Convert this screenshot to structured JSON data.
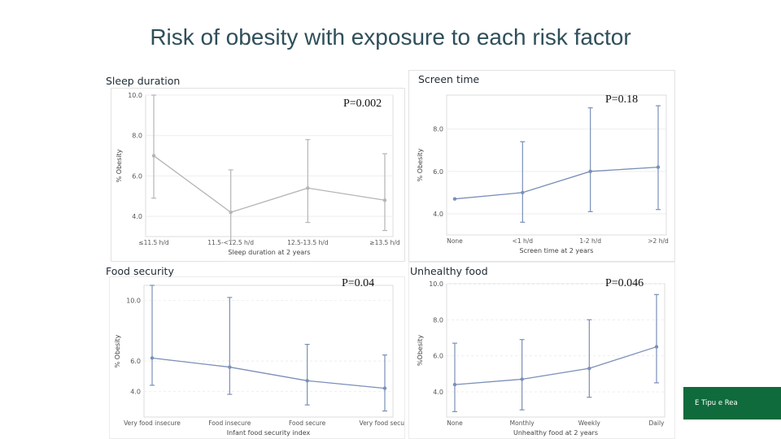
{
  "slide_title": "Risk of obesity with exposure to each risk factor",
  "brand": "E Tipu e Rea",
  "panels": [
    {
      "label": "Sleep duration",
      "pvalue": "P=0.002"
    },
    {
      "label": "Screen time",
      "pvalue": "P=0.18"
    },
    {
      "label": "Food security",
      "pvalue": "P=0.04"
    },
    {
      "label": "Unhealthy food",
      "pvalue": "P=0.046"
    }
  ],
  "chart_data": [
    {
      "type": "line",
      "ylabel": "% Obesity",
      "xlabel": "Sleep duration at 2 years",
      "categories": [
        "≤11.5 h/d",
        "11.5-<12.5 h/d",
        "12.5-13.5 h/d",
        "≥13.5 h/d"
      ],
      "values": [
        7.0,
        4.2,
        5.4,
        4.8
      ],
      "ci_low": [
        4.9,
        2.8,
        3.7,
        3.3
      ],
      "ci_high": [
        10.0,
        6.3,
        7.8,
        7.1
      ],
      "yticks": [
        "4.0",
        "6.0",
        "8.0",
        "10.0"
      ],
      "ylim": [
        3.0,
        10.0
      ],
      "color": "#b5b5b5"
    },
    {
      "type": "line",
      "ylabel": "% Obesity",
      "xlabel": "Screen time at 2 years",
      "categories": [
        "None",
        "<1 h/d",
        "1-2 h/d",
        ">2 h/d"
      ],
      "values": [
        4.7,
        5.0,
        6.0,
        6.2
      ],
      "ci_low": [
        4.7,
        3.6,
        4.1,
        4.2
      ],
      "ci_high": [
        4.7,
        7.4,
        9.0,
        9.1
      ],
      "yticks": [
        "4.0",
        "6.0",
        "8.0"
      ],
      "ylim": [
        3.0,
        9.6
      ],
      "color": "#7a8fb8"
    },
    {
      "type": "line",
      "ylabel": "% Obesity",
      "xlabel": "Infant food security index",
      "categories": [
        "Very food insecure",
        "Food insecure",
        "Food secure",
        "Very food secure"
      ],
      "values": [
        6.2,
        5.6,
        4.7,
        4.2
      ],
      "ci_low": [
        4.4,
        3.8,
        3.1,
        2.7
      ],
      "ci_high": [
        11.0,
        10.2,
        7.1,
        6.4
      ],
      "yticks": [
        "4.0",
        "6.0",
        "10.0"
      ],
      "ylim": [
        2.3,
        11.0
      ],
      "color": "#7a8fb8"
    },
    {
      "type": "line",
      "ylabel": "%Obesity",
      "xlabel": "Unhealthy food at 2 years",
      "categories": [
        "None",
        "Monthly",
        "Weekly",
        "Daily"
      ],
      "values": [
        4.4,
        4.7,
        5.3,
        6.5
      ],
      "ci_low": [
        2.9,
        3.0,
        3.7,
        4.5
      ],
      "ci_high": [
        6.7,
        6.9,
        8.0,
        9.4
      ],
      "yticks": [
        "4.0",
        "6.0",
        "8.0",
        "10.0"
      ],
      "ylim": [
        2.6,
        10.0
      ],
      "color": "#7a8fb8"
    }
  ]
}
